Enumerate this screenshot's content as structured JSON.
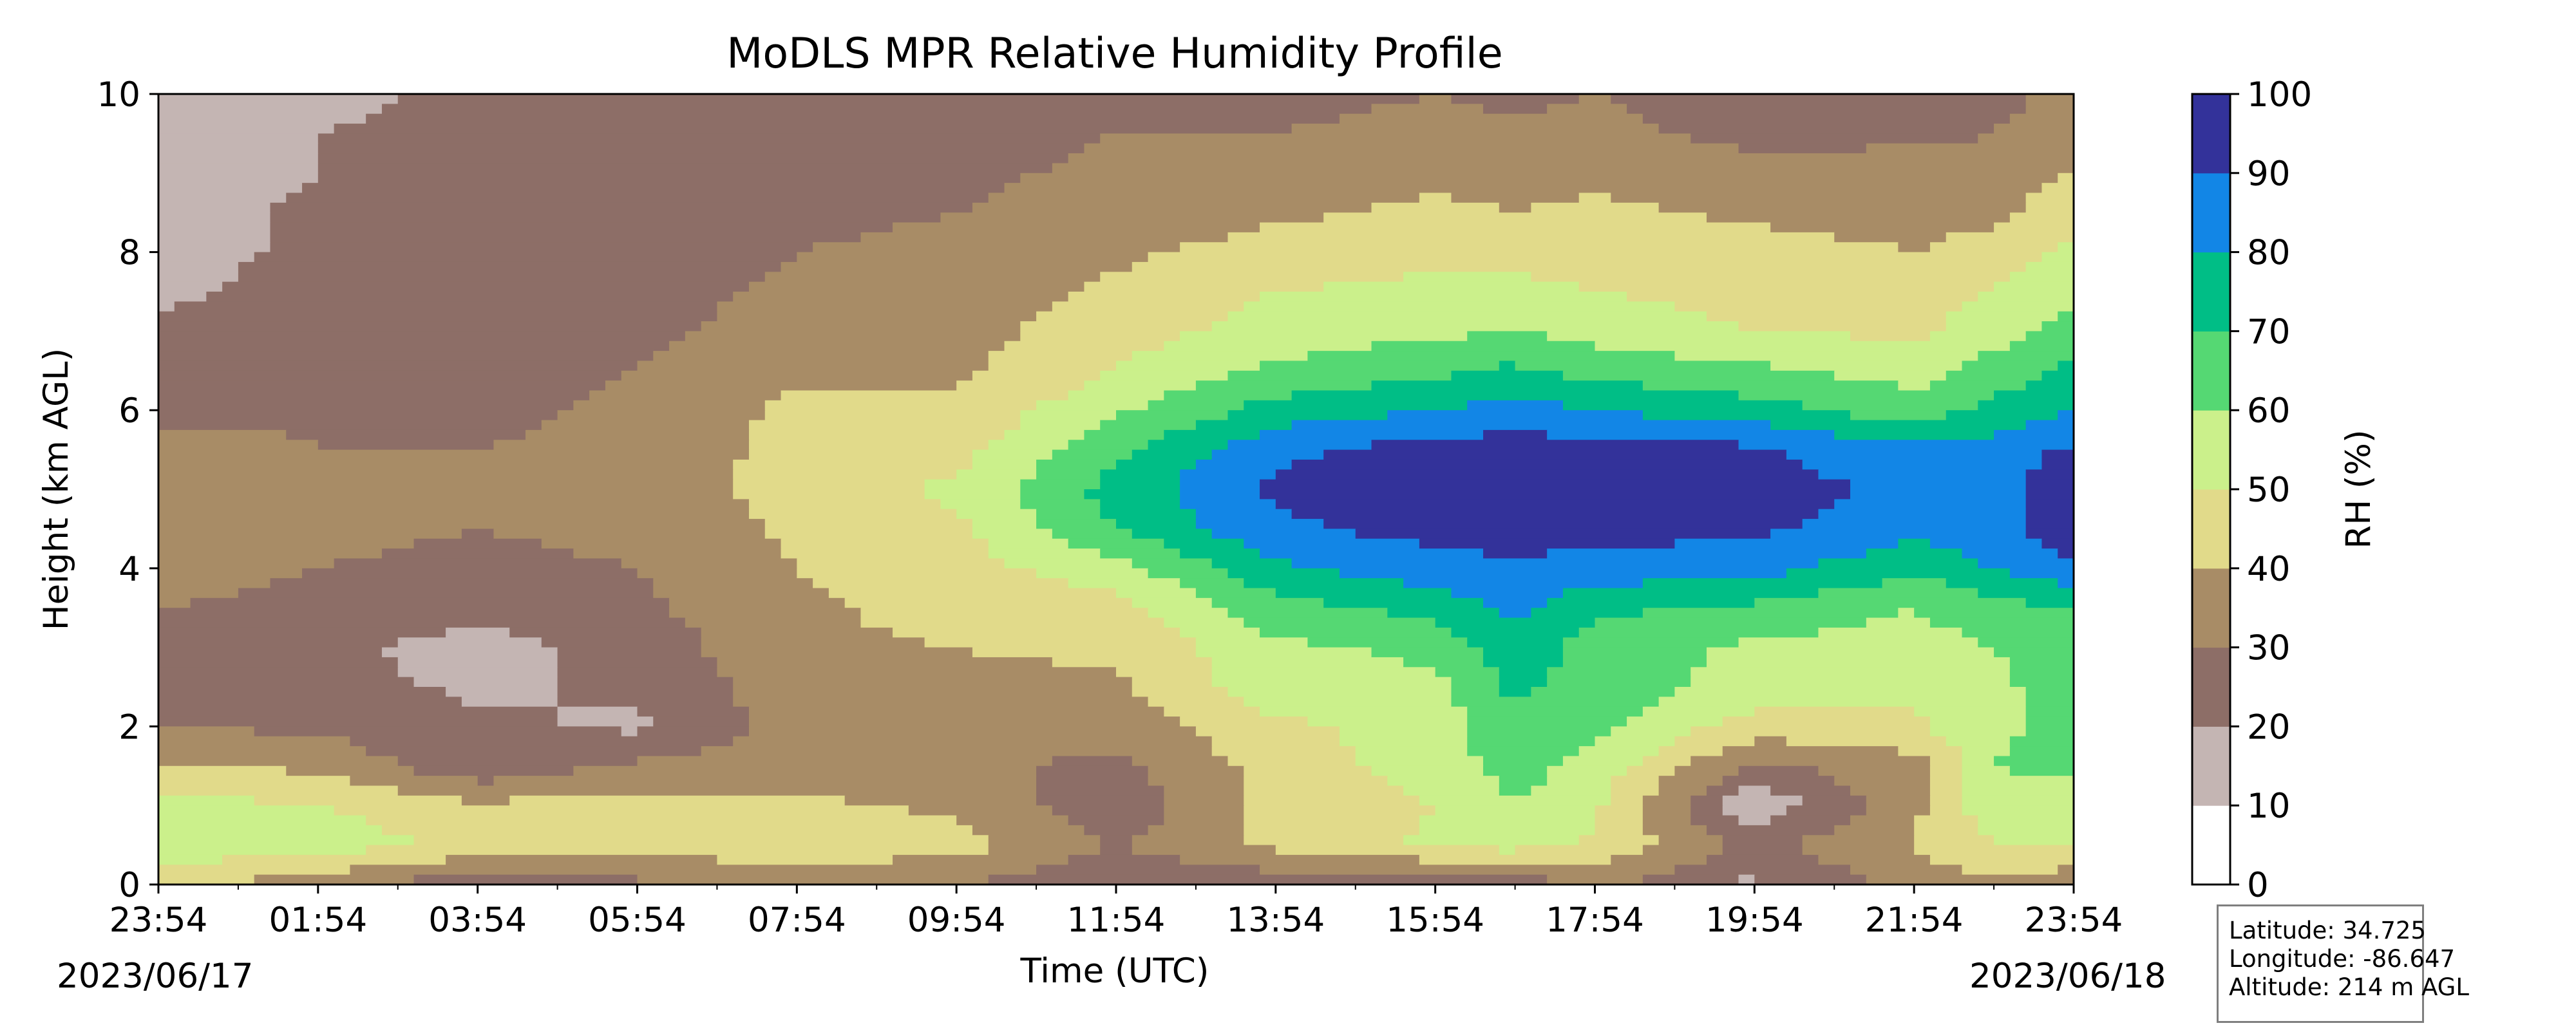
{
  "chart_data": {
    "type": "heatmap",
    "title": "MoDLS MPR Relative Humidity Profile",
    "xlabel": "Time (UTC)",
    "ylabel": "Height (km AGL)",
    "colorbar_label": "RH (%)",
    "ylim": [
      0,
      10
    ],
    "y_ticks": [
      "0",
      "2",
      "4",
      "6",
      "8",
      "10"
    ],
    "x_ticks": [
      "23:54",
      "01:54",
      "03:54",
      "05:54",
      "07:54",
      "09:54",
      "11:54",
      "13:54",
      "15:54",
      "17:54",
      "19:54",
      "21:54",
      "23:54"
    ],
    "date_start": "2023/06/17",
    "date_end": "2023/06/18",
    "levels": [
      0,
      10,
      20,
      30,
      40,
      50,
      60,
      70,
      80,
      90,
      100
    ],
    "level_labels": [
      "0",
      "10",
      "20",
      "30",
      "40",
      "50",
      "60",
      "70",
      "80",
      "90",
      "100"
    ],
    "level_colors": [
      "#ffffff",
      "#c4b5b3",
      "#8d6e67",
      "#a88c66",
      "#e1da8a",
      "#cbf08b",
      "#55d873",
      "#00be86",
      "#1286e6",
      "#33329a"
    ],
    "color_stops": [
      {
        "rh": 0,
        "color": "#ffffff"
      },
      {
        "rh": 15,
        "color": "#c4b5b3"
      },
      {
        "rh": 25,
        "color": "#8d6e67"
      },
      {
        "rh": 35,
        "color": "#a88c66"
      },
      {
        "rh": 45,
        "color": "#e1da8a"
      },
      {
        "rh": 55,
        "color": "#cbf08b"
      },
      {
        "rh": 65,
        "color": "#55d873"
      },
      {
        "rh": 75,
        "color": "#00be86"
      },
      {
        "rh": 85,
        "color": "#1286e6"
      },
      {
        "rh": 95,
        "color": "#33329a"
      }
    ],
    "rh_grid": {
      "heights_km": [
        0.0,
        0.5,
        1.0,
        1.5,
        2.0,
        2.5,
        3.0,
        3.5,
        4.0,
        4.5,
        5.0,
        5.5,
        6.0,
        6.5,
        7.0,
        7.5,
        8.0,
        8.5,
        9.0,
        9.5,
        10.0
      ],
      "hours_utc_from_start": [
        0,
        2,
        4,
        6,
        8,
        10,
        12,
        14,
        16,
        17,
        18,
        20,
        22,
        23,
        24
      ],
      "rh_percent": [
        [
          44,
          34,
          22,
          28,
          36,
          30,
          22,
          24,
          22,
          24,
          32,
          18,
          34,
          38,
          32
        ],
        [
          56,
          56,
          47,
          44,
          46,
          44,
          30,
          42,
          52,
          54,
          48,
          28,
          40,
          50,
          52
        ],
        [
          54,
          50,
          42,
          44,
          42,
          38,
          22,
          44,
          50,
          60,
          52,
          12,
          38,
          56,
          56
        ],
        [
          40,
          38,
          22,
          32,
          34,
          32,
          28,
          44,
          55,
          64,
          56,
          28,
          36,
          60,
          62
        ],
        [
          30,
          28,
          22,
          18,
          34,
          30,
          34,
          48,
          54,
          68,
          62,
          46,
          48,
          58,
          64
        ],
        [
          26,
          24,
          18,
          22,
          36,
          38,
          38,
          56,
          58,
          72,
          66,
          56,
          52,
          58,
          64
        ],
        [
          25,
          22,
          16,
          24,
          38,
          40,
          42,
          58,
          62,
          76,
          66,
          58,
          56,
          60,
          66
        ],
        [
          30,
          26,
          24,
          28,
          38,
          44,
          46,
          66,
          74,
          82,
          72,
          68,
          60,
          66,
          70
        ],
        [
          36,
          30,
          28,
          30,
          40,
          46,
          56,
          78,
          86,
          88,
          86,
          84,
          72,
          80,
          88
        ],
        [
          38,
          32,
          30,
          32,
          42,
          48,
          70,
          88,
          94,
          95,
          94,
          92,
          84,
          86,
          96
        ],
        [
          40,
          34,
          32,
          34,
          44,
          52,
          74,
          92,
          95,
          96,
          95,
          94,
          88,
          88,
          95
        ],
        [
          36,
          30,
          30,
          32,
          44,
          46,
          68,
          88,
          94,
          95,
          94,
          92,
          82,
          84,
          92
        ],
        [
          26,
          28,
          28,
          32,
          42,
          42,
          58,
          74,
          80,
          84,
          80,
          74,
          64,
          74,
          80
        ],
        [
          24,
          26,
          26,
          30,
          38,
          38,
          50,
          62,
          68,
          72,
          66,
          62,
          56,
          64,
          72
        ],
        [
          22,
          24,
          24,
          28,
          34,
          36,
          46,
          54,
          58,
          60,
          56,
          50,
          48,
          56,
          64
        ],
        [
          18,
          24,
          24,
          26,
          32,
          34,
          42,
          50,
          52,
          52,
          50,
          46,
          44,
          50,
          58
        ],
        [
          16,
          22,
          24,
          24,
          30,
          32,
          38,
          44,
          48,
          48,
          46,
          44,
          40,
          44,
          52
        ],
        [
          16,
          22,
          24,
          24,
          28,
          30,
          34,
          38,
          42,
          40,
          42,
          38,
          36,
          38,
          46
        ],
        [
          14,
          20,
          24,
          24,
          26,
          28,
          32,
          34,
          38,
          36,
          38,
          32,
          34,
          34,
          40
        ],
        [
          14,
          20,
          22,
          24,
          26,
          26,
          30,
          30,
          32,
          32,
          32,
          28,
          28,
          30,
          34
        ],
        [
          14,
          18,
          22,
          22,
          24,
          24,
          26,
          28,
          30,
          28,
          30,
          26,
          26,
          28,
          32
        ]
      ]
    }
  },
  "info_box": {
    "latitude": "Latitude: 34.725",
    "longitude": "Longitude: -86.647",
    "altitude": "Altitude: 214 m AGL"
  }
}
